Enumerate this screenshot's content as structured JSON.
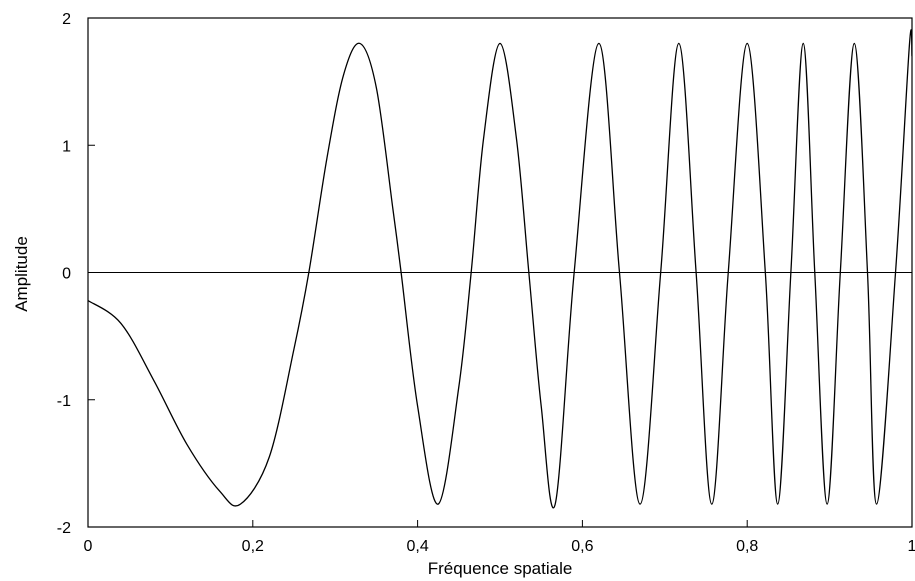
{
  "chart_data": {
    "type": "line",
    "title": "",
    "xlabel": "Fréquence spatiale",
    "ylabel": "Amplitude",
    "xlim": [
      0,
      1
    ],
    "ylim": [
      -2,
      2
    ],
    "x_ticks": [
      {
        "value": 0,
        "label": "0"
      },
      {
        "value": 0.2,
        "label": "0,2"
      },
      {
        "value": 0.4,
        "label": "0,4"
      },
      {
        "value": 0.6,
        "label": "0,6"
      },
      {
        "value": 0.8,
        "label": "0,8"
      },
      {
        "value": 1,
        "label": "1"
      }
    ],
    "y_ticks": [
      {
        "value": -2,
        "label": "-2"
      },
      {
        "value": -1,
        "label": "-1"
      },
      {
        "value": 0,
        "label": "0"
      },
      {
        "value": 1,
        "label": "1"
      },
      {
        "value": 2,
        "label": "2"
      }
    ],
    "grid": false,
    "legend": "none",
    "reference_lines": [
      {
        "axis": "y",
        "value": 0
      }
    ],
    "line_color": "#000000",
    "series": [
      {
        "x": [
          0,
          0.04,
          0.08,
          0.12,
          0.16,
          0.185,
          0.22,
          0.25,
          0.268,
          0.29,
          0.31,
          0.33,
          0.35,
          0.37,
          0.38,
          0.4,
          0.425,
          0.45,
          0.465,
          0.48,
          0.5,
          0.52,
          0.535,
          0.55,
          0.567,
          0.59,
          0.62,
          0.645,
          0.67,
          0.695,
          0.717,
          0.738,
          0.757,
          0.777,
          0.8,
          0.822,
          0.837,
          0.853,
          0.868,
          0.882,
          0.897,
          0.913,
          0.93,
          0.946,
          0.957,
          0.98,
          0.997,
          1.0
        ],
        "y": [
          -0.22,
          -0.4,
          -0.85,
          -1.35,
          -1.72,
          -1.82,
          -1.45,
          -0.6,
          0.0,
          0.9,
          1.55,
          1.8,
          1.45,
          0.5,
          0.0,
          -1.05,
          -1.82,
          -0.9,
          0.0,
          1.05,
          1.8,
          1.05,
          0.0,
          -1.05,
          -1.82,
          0.0,
          1.8,
          0.0,
          -1.82,
          0.0,
          1.8,
          0.0,
          -1.82,
          0.0,
          1.8,
          0.0,
          -1.82,
          0.0,
          1.8,
          0.0,
          -1.82,
          0.0,
          1.8,
          0.0,
          -1.82,
          0.0,
          1.8,
          1.7
        ]
      }
    ]
  }
}
